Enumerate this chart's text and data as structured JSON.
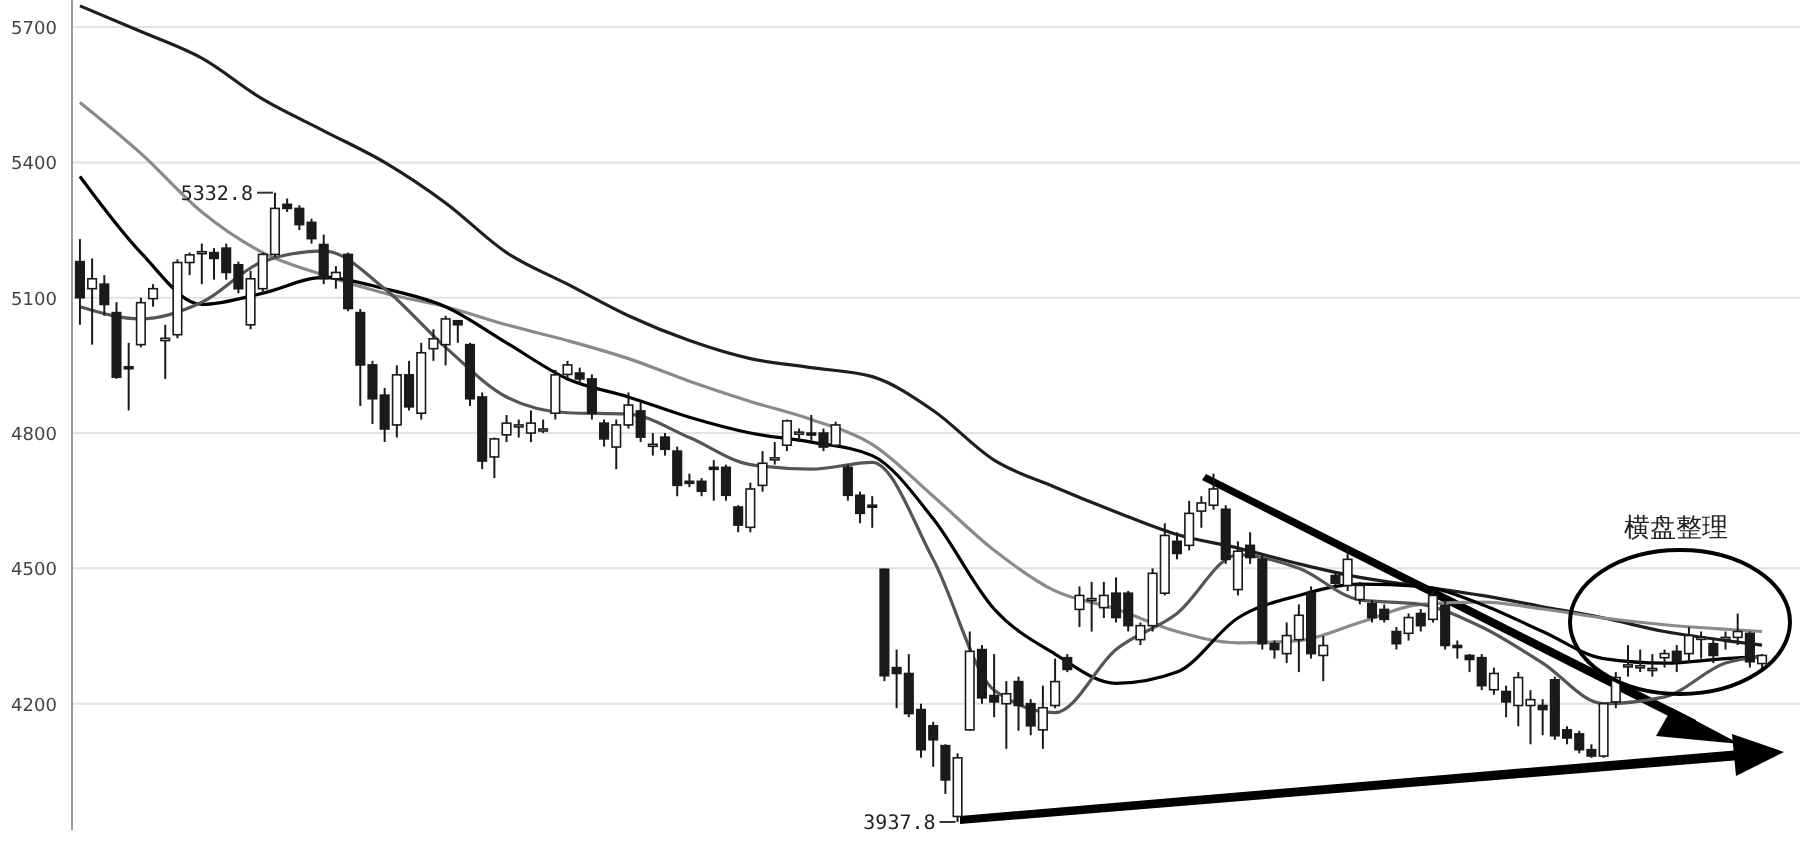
{
  "chart_data": {
    "type": "candlestick",
    "categories": [
      null,
      null,
      null,
      null,
      null,
      null,
      null,
      null,
      null,
      null,
      null,
      null,
      null,
      null,
      null,
      null,
      null,
      null,
      null,
      null,
      null,
      null,
      null,
      null,
      null,
      null,
      null,
      null,
      null,
      null,
      null,
      null,
      null,
      null,
      null,
      null,
      null,
      null,
      null,
      null,
      null,
      null,
      null,
      null,
      null,
      null,
      null,
      null,
      null,
      null,
      null,
      null,
      null,
      null,
      null,
      null,
      null,
      null,
      null,
      null,
      null,
      null,
      null,
      null,
      null,
      null,
      null,
      null,
      null,
      null,
      null,
      null,
      null,
      null,
      null,
      null,
      null,
      null,
      null,
      null,
      null,
      null,
      null,
      null,
      null,
      null,
      null,
      null,
      null,
      null,
      null,
      null,
      null,
      null,
      null,
      null,
      null,
      null,
      null,
      null,
      null,
      null,
      null,
      null,
      null,
      null,
      null,
      null,
      null,
      null,
      null,
      null,
      null,
      null,
      null,
      null,
      null,
      null,
      null,
      null,
      null,
      null,
      null,
      null,
      null,
      null,
      null,
      null,
      null,
      null,
      null,
      null,
      null,
      null,
      null,
      null,
      null,
      null,
      null
    ],
    "ohlc": [
      [
        5180,
        5230,
        5040,
        5100
      ],
      [
        5120,
        5187,
        4996,
        5142
      ],
      [
        5130,
        5150,
        5060,
        5085
      ],
      [
        5067,
        5090,
        4920,
        4924
      ],
      [
        4947,
        5000,
        4850,
        4944
      ],
      [
        4996,
        5100,
        4990,
        5089
      ],
      [
        5098,
        5130,
        5080,
        5120
      ],
      [
        5005,
        5040,
        4920,
        5010
      ],
      [
        5018,
        5185,
        5010,
        5178
      ],
      [
        5178,
        5200,
        5150,
        5195
      ],
      [
        5200,
        5220,
        5130,
        5202
      ],
      [
        5200,
        5210,
        5140,
        5187
      ],
      [
        5210,
        5220,
        5140,
        5156
      ],
      [
        5173,
        5180,
        5110,
        5120
      ],
      [
        5040,
        5160,
        5030,
        5142
      ],
      [
        5120,
        5200,
        5110,
        5196
      ],
      [
        5196,
        5332.8,
        5190,
        5298
      ],
      [
        5307,
        5320,
        5290,
        5298
      ],
      [
        5298,
        5305,
        5250,
        5262
      ],
      [
        5267,
        5275,
        5220,
        5231
      ],
      [
        5218,
        5240,
        5130,
        5142
      ],
      [
        5142,
        5170,
        5120,
        5156
      ],
      [
        5196,
        5200,
        5070,
        5076
      ],
      [
        5067,
        5075,
        4860,
        4951
      ],
      [
        4951,
        4960,
        4820,
        4876
      ],
      [
        4884,
        4900,
        4780,
        4809
      ],
      [
        4818,
        4950,
        4790,
        4929
      ],
      [
        4929,
        4960,
        4850,
        4858
      ],
      [
        4844,
        5000,
        4830,
        4978
      ],
      [
        4987,
        5030,
        4960,
        5009
      ],
      [
        4996,
        5060,
        4950,
        5053
      ],
      [
        5049,
        5050,
        5000,
        5040
      ],
      [
        4996,
        5000,
        4860,
        4876
      ],
      [
        4880,
        4890,
        4720,
        4738
      ],
      [
        4747,
        4790,
        4700,
        4787
      ],
      [
        4796,
        4840,
        4780,
        4822
      ],
      [
        4818,
        4830,
        4790,
        4818
      ],
      [
        4800,
        4850,
        4780,
        4822
      ],
      [
        4809,
        4830,
        4800,
        4809
      ],
      [
        4844,
        4940,
        4830,
        4929
      ],
      [
        4930,
        4960,
        4920,
        4951
      ],
      [
        4933,
        4945,
        4910,
        4920
      ],
      [
        4920,
        4930,
        4830,
        4844
      ],
      [
        4822,
        4830,
        4770,
        4787
      ],
      [
        4769,
        4830,
        4720,
        4818
      ],
      [
        4818,
        4890,
        4810,
        4862
      ],
      [
        4849,
        4870,
        4780,
        4791
      ],
      [
        4773,
        4800,
        4750,
        4775
      ],
      [
        4791,
        4800,
        4750,
        4764
      ],
      [
        4760,
        4770,
        4660,
        4684
      ],
      [
        4693,
        4710,
        4680,
        4690
      ],
      [
        4693,
        4700,
        4660,
        4671
      ],
      [
        4724,
        4740,
        4650,
        4722
      ],
      [
        4724,
        4730,
        4650,
        4662
      ],
      [
        4636,
        4640,
        4580,
        4596
      ],
      [
        4591,
        4690,
        4580,
        4676
      ],
      [
        4684,
        4760,
        4670,
        4733
      ],
      [
        4742,
        4780,
        4730,
        4745
      ],
      [
        4773,
        4830,
        4760,
        4827
      ],
      [
        4800,
        4810,
        4780,
        4802
      ],
      [
        4800,
        4840,
        4780,
        4798
      ],
      [
        4800,
        4810,
        4760,
        4769
      ],
      [
        4773,
        4825,
        4770,
        4818
      ],
      [
        4724,
        4730,
        4650,
        4662
      ],
      [
        4662,
        4670,
        4600,
        4622
      ],
      [
        4640,
        4660,
        4590,
        4638
      ],
      [
        4498,
        4500,
        4250,
        4262
      ],
      [
        4280,
        4320,
        4190,
        4267
      ],
      [
        4267,
        4310,
        4170,
        4178
      ],
      [
        4187,
        4200,
        4080,
        4098
      ],
      [
        4151,
        4160,
        4060,
        4120
      ],
      [
        4107,
        4110,
        4000,
        4031
      ],
      [
        3950,
        4090,
        3937.8,
        4080
      ],
      [
        4142,
        4360,
        4140,
        4316
      ],
      [
        4320,
        4330,
        4200,
        4213
      ],
      [
        4218,
        4310,
        4170,
        4204
      ],
      [
        4200,
        4250,
        4100,
        4222
      ],
      [
        4249,
        4260,
        4140,
        4196
      ],
      [
        4200,
        4210,
        4130,
        4151
      ],
      [
        4142,
        4240,
        4100,
        4191
      ],
      [
        4196,
        4300,
        4190,
        4249
      ],
      [
        4302,
        4310,
        4270,
        4276
      ],
      [
        4409,
        4460,
        4370,
        4440
      ],
      [
        4431,
        4470,
        4360,
        4433
      ],
      [
        4413,
        4470,
        4390,
        4440
      ],
      [
        4445,
        4480,
        4380,
        4391
      ],
      [
        4445,
        4450,
        4360,
        4373
      ],
      [
        4342,
        4380,
        4330,
        4373
      ],
      [
        4373,
        4500,
        4360,
        4489
      ],
      [
        4445,
        4600,
        4440,
        4573
      ],
      [
        4560,
        4580,
        4520,
        4533
      ],
      [
        4551,
        4650,
        4540,
        4622
      ],
      [
        4627,
        4660,
        4590,
        4645
      ],
      [
        4640,
        4710,
        4630,
        4676
      ],
      [
        4631,
        4640,
        4510,
        4520
      ],
      [
        4453,
        4560,
        4440,
        4538
      ],
      [
        4551,
        4580,
        4510,
        4524
      ],
      [
        4520,
        4530,
        4320,
        4333
      ],
      [
        4333,
        4340,
        4300,
        4320
      ],
      [
        4311,
        4380,
        4290,
        4351
      ],
      [
        4342,
        4420,
        4270,
        4396
      ],
      [
        4445,
        4460,
        4300,
        4311
      ],
      [
        4307,
        4350,
        4250,
        4329
      ],
      [
        4484,
        4490,
        4460,
        4467
      ],
      [
        4462,
        4550,
        4450,
        4520
      ],
      [
        4431,
        4470,
        4420,
        4462
      ],
      [
        4422,
        4430,
        4380,
        4391
      ],
      [
        4409,
        4420,
        4380,
        4387
      ],
      [
        4360,
        4370,
        4320,
        4333
      ],
      [
        4356,
        4400,
        4340,
        4391
      ],
      [
        4400,
        4410,
        4360,
        4373
      ],
      [
        4387,
        4450,
        4380,
        4440
      ],
      [
        4418,
        4430,
        4320,
        4329
      ],
      [
        4329,
        4340,
        4300,
        4325
      ],
      [
        4307,
        4310,
        4270,
        4298
      ],
      [
        4302,
        4310,
        4230,
        4240
      ],
      [
        4231,
        4280,
        4220,
        4267
      ],
      [
        4227,
        4240,
        4170,
        4204
      ],
      [
        4196,
        4270,
        4150,
        4258
      ],
      [
        4196,
        4230,
        4110,
        4209
      ],
      [
        4196,
        4210,
        4130,
        4187
      ],
      [
        4253,
        4260,
        4120,
        4129
      ],
      [
        4142,
        4150,
        4110,
        4124
      ],
      [
        4133,
        4140,
        4090,
        4098
      ],
      [
        4098,
        4110,
        4080,
        4084
      ],
      [
        4084,
        4200,
        4080,
        4200
      ],
      [
        4204,
        4270,
        4190,
        4258
      ],
      [
        4284,
        4330,
        4260,
        4286
      ],
      [
        4284,
        4320,
        4270,
        4284
      ],
      [
        4276,
        4310,
        4260,
        4278
      ],
      [
        4302,
        4320,
        4280,
        4311
      ],
      [
        4316,
        4330,
        4270,
        4293
      ],
      [
        4311,
        4370,
        4290,
        4351
      ],
      [
        4347,
        4360,
        4300,
        4347
      ],
      [
        4333,
        4345,
        4290,
        4307
      ],
      [
        4347,
        4360,
        4320,
        4347
      ],
      [
        4347,
        4400,
        4330,
        4360
      ],
      [
        4356,
        4360,
        4280,
        4293
      ],
      [
        4289,
        4310,
        4270,
        4307
      ]
    ],
    "series": [
      {
        "type": "line",
        "color": "#1e1e1e",
        "values": [
          5747,
          null,
          null,
          null,
          null,
          5690,
          null,
          null,
          null,
          null,
          5631,
          null,
          null,
          null,
          null,
          5540,
          null,
          null,
          null,
          null,
          5470,
          null,
          null,
          null,
          null,
          5400,
          null,
          null,
          null,
          null,
          5310,
          null,
          null,
          null,
          null,
          5200,
          null,
          null,
          null,
          null,
          5130,
          null,
          null,
          null,
          null,
          5060,
          null,
          null,
          null,
          null,
          5005,
          null,
          null,
          null,
          null,
          4965,
          null,
          null,
          null,
          null,
          4945,
          null,
          null,
          null,
          null,
          4925,
          null,
          null,
          null,
          null,
          4850,
          null,
          null,
          null,
          null,
          4740,
          null,
          null,
          null,
          null,
          4680,
          null,
          null,
          null,
          null,
          4625,
          null,
          null,
          null,
          null,
          4575,
          null,
          null,
          null,
          null,
          4545,
          null,
          null,
          null,
          null,
          4510,
          null,
          null,
          null,
          null,
          4480,
          null,
          null,
          null,
          null,
          4460,
          null,
          null,
          null,
          null,
          4440,
          null,
          null,
          null,
          null,
          4415,
          null,
          null,
          null,
          null,
          4390,
          null,
          null,
          null,
          null,
          4360,
          null,
          null,
          null,
          null,
          4340,
          null,
          null,
          4330
        ]
      },
      {
        "type": "line",
        "color": "#8a8a8a",
        "values": [
          5533,
          null,
          null,
          null,
          null,
          5420,
          null,
          null,
          null,
          null,
          5290,
          null,
          null,
          null,
          null,
          5200,
          null,
          null,
          null,
          null,
          5150,
          null,
          null,
          null,
          null,
          5110,
          null,
          null,
          null,
          null,
          5080,
          null,
          null,
          null,
          null,
          5040,
          null,
          null,
          null,
          null,
          5005,
          null,
          null,
          null,
          null,
          4965,
          null,
          null,
          null,
          null,
          4915,
          null,
          null,
          null,
          null,
          4870,
          null,
          null,
          null,
          null,
          4830,
          null,
          null,
          null,
          null,
          4775,
          null,
          null,
          null,
          null,
          4660,
          null,
          null,
          null,
          null,
          4540,
          null,
          null,
          null,
          null,
          4450,
          null,
          null,
          null,
          null,
          4410,
          null,
          null,
          null,
          null,
          4360,
          null,
          null,
          null,
          null,
          4335,
          null,
          null,
          null,
          null,
          4340,
          null,
          null,
          null,
          null,
          4380,
          null,
          null,
          null,
          null,
          4420,
          null,
          null,
          null,
          null,
          4425,
          null,
          null,
          null,
          null,
          4410,
          null,
          null,
          null,
          null,
          4390,
          null,
          null,
          null,
          null,
          4375,
          null,
          null,
          null,
          null,
          4365,
          null,
          null,
          4360
        ]
      },
      {
        "type": "line",
        "color": "#000000",
        "values": [
          5369,
          null,
          null,
          null,
          null,
          5200,
          null,
          null,
          null,
          null,
          5085,
          null,
          null,
          null,
          null,
          5110,
          null,
          null,
          null,
          null,
          5145,
          null,
          null,
          null,
          null,
          5120,
          null,
          null,
          null,
          null,
          5080,
          null,
          null,
          null,
          null,
          5000,
          null,
          null,
          null,
          null,
          4920,
          null,
          null,
          null,
          null,
          4880,
          null,
          null,
          null,
          null,
          4835,
          null,
          null,
          null,
          null,
          4800,
          null,
          null,
          null,
          null,
          4780,
          null,
          null,
          null,
          null,
          4750,
          null,
          null,
          null,
          null,
          4610,
          null,
          null,
          null,
          null,
          4410,
          null,
          null,
          null,
          null,
          4310,
          null,
          null,
          null,
          null,
          4245,
          null,
          null,
          null,
          null,
          4270,
          null,
          null,
          null,
          null,
          4390,
          null,
          null,
          null,
          null,
          4440,
          null,
          null,
          null,
          null,
          4465,
          null,
          null,
          null,
          null,
          4460,
          null,
          null,
          null,
          null,
          4420,
          null,
          null,
          null,
          null,
          4360,
          null,
          null,
          null,
          null,
          4300,
          null,
          null,
          null,
          null,
          4290,
          null,
          null,
          null,
          null,
          4300,
          null,
          null,
          4305
        ]
      },
      {
        "type": "line",
        "color": "#555555",
        "values": [
          5080,
          null,
          null,
          null,
          null,
          5053,
          null,
          null,
          null,
          null,
          5090,
          null,
          null,
          null,
          null,
          5180,
          null,
          null,
          null,
          null,
          5204,
          null,
          null,
          null,
          null,
          5120,
          null,
          null,
          null,
          null,
          4990,
          null,
          null,
          null,
          null,
          4880,
          null,
          null,
          null,
          null,
          4845,
          null,
          null,
          null,
          null,
          4842,
          null,
          null,
          null,
          null,
          4790,
          null,
          null,
          null,
          null,
          4730,
          null,
          null,
          null,
          null,
          4720,
          null,
          null,
          null,
          null,
          4735,
          null,
          null,
          null,
          null,
          4520,
          null,
          null,
          null,
          null,
          4230,
          null,
          null,
          null,
          null,
          4180,
          null,
          null,
          null,
          null,
          4320,
          null,
          null,
          null,
          null,
          4400,
          null,
          null,
          null,
          null,
          4530,
          null,
          null,
          null,
          null,
          4500,
          null,
          null,
          null,
          null,
          4430,
          null,
          null,
          null,
          null,
          4420,
          null,
          null,
          null,
          null,
          4370,
          null,
          null,
          null,
          null,
          4290,
          null,
          null,
          null,
          null,
          4200,
          null,
          null,
          null,
          null,
          4215,
          null,
          null,
          null,
          null,
          4290,
          null,
          null,
          4305
        ]
      }
    ],
    "ylim": [
      3920,
      5760
    ],
    "yticks": [
      4200,
      4500,
      4800,
      5100,
      5400,
      5700
    ],
    "grid": "y",
    "tick_labels": "y",
    "annotations": [
      "5332.8",
      "3937.8",
      "横盘整理"
    ]
  }
}
